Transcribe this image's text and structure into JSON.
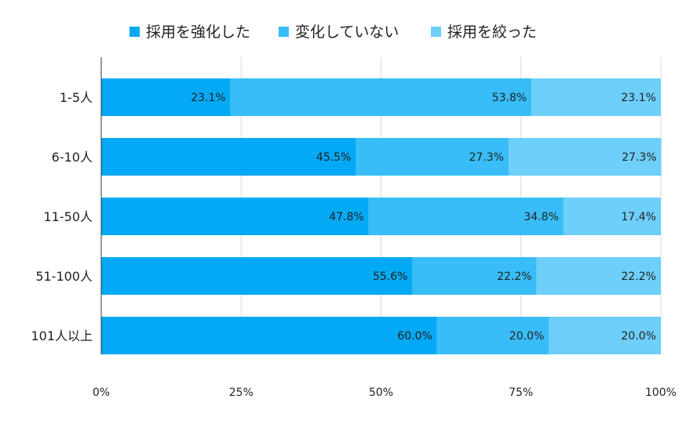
{
  "chart_data": {
    "type": "stacked-bar-horizontal-100",
    "categories": [
      "1-5人",
      "6-10人",
      "11-50人",
      "51-100人",
      "101人以上"
    ],
    "series": [
      {
        "name": "採用を強化した",
        "color": "#03a9f4",
        "values": [
          23.1,
          45.5,
          47.8,
          55.6,
          60.0
        ],
        "labels": [
          "23.1%",
          "45.5%",
          "47.8%",
          "55.6%",
          "60.0%"
        ]
      },
      {
        "name": "変化していない",
        "color": "#38bdf8",
        "values": [
          53.8,
          27.3,
          34.8,
          22.2,
          20.0
        ],
        "labels": [
          "53.8%",
          "27.3%",
          "34.8%",
          "22.2%",
          "20.0%"
        ]
      },
      {
        "name": "採用を絞った",
        "color": "#6dcffa",
        "values": [
          23.1,
          27.3,
          17.4,
          22.2,
          20.0
        ],
        "labels": [
          "23.1%",
          "27.3%",
          "17.4%",
          "22.2%",
          "20.0%"
        ]
      }
    ],
    "xlim": [
      0,
      100
    ],
    "xticks": [
      0,
      25,
      50,
      75,
      100
    ],
    "xtick_labels": [
      "0%",
      "25%",
      "50%",
      "75%",
      "100%"
    ],
    "legend_position": "top",
    "grid": true
  }
}
